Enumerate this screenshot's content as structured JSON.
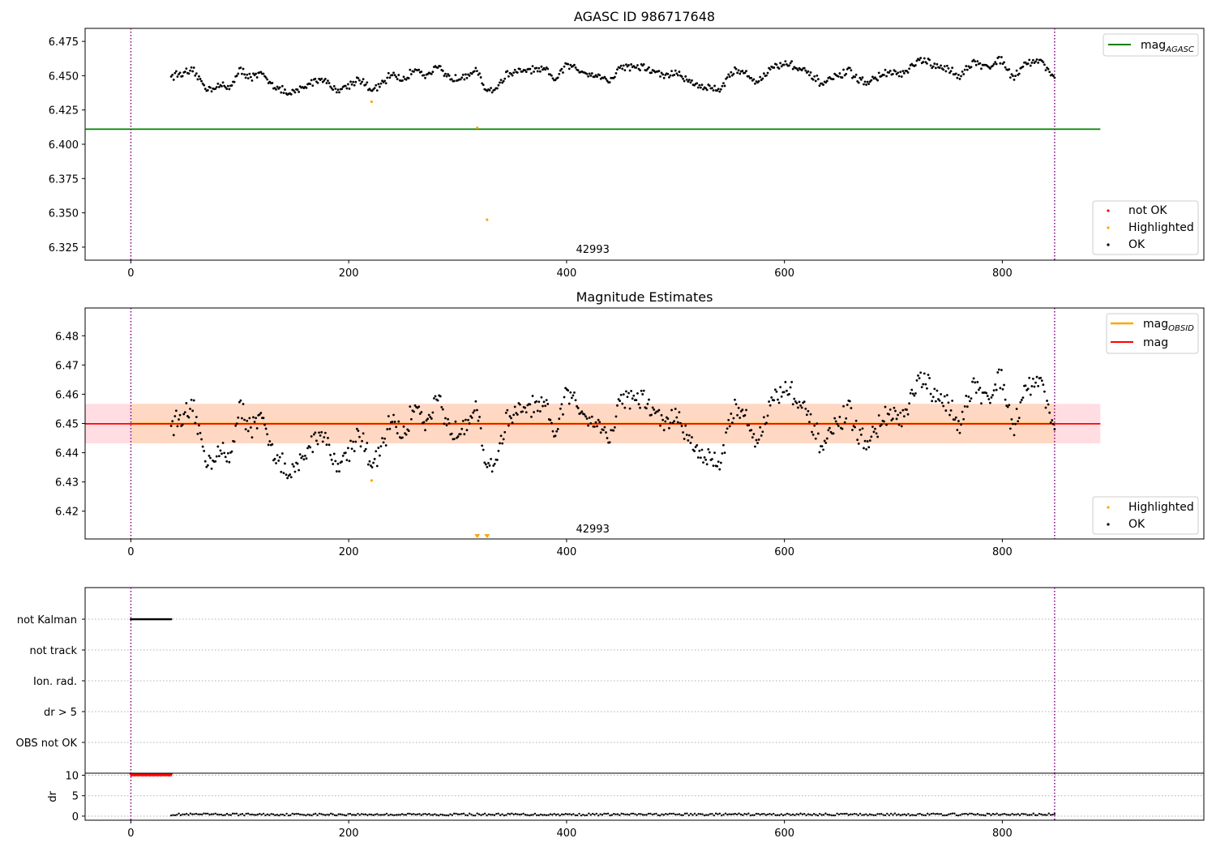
{
  "figure": {
    "title": "AGASC ID 986717648",
    "colors": {
      "agasc_line": "#008000",
      "mag_line": "#ff0000",
      "obsid_line": "#ffa500",
      "highlighted": "#ffa500",
      "not_ok": "#ff0000",
      "ok": "#000000",
      "boundary": "#800080",
      "band_pink": "#ffdde2",
      "band_orange": "#ffd8c4"
    }
  },
  "chart_data": [
    {
      "id": "agasc",
      "type": "scatter",
      "title": "AGASC ID 986717648",
      "xlim": [
        -42,
        985
      ],
      "ylim": [
        6.3155,
        6.4845
      ],
      "xticks": [
        0,
        200,
        400,
        600,
        800
      ],
      "yticks": [
        6.325,
        6.35,
        6.375,
        6.4,
        6.425,
        6.45,
        6.475
      ],
      "ytick_labels": [
        "6.325",
        "6.350",
        "6.375",
        "6.400",
        "6.425",
        "6.450",
        "6.475"
      ],
      "obsid_label": {
        "text": "42993",
        "x": 424
      },
      "vlines": [
        0,
        848
      ],
      "hlines": [
        {
          "name": "mag_AGASC",
          "y": 6.411,
          "x": [
            -42,
            890
          ]
        }
      ],
      "ok_series": {
        "x_start": 37,
        "x_end": 848,
        "n": 700,
        "dither": 0.002
      },
      "highlighted": [
        [
          221,
          6.431
        ],
        [
          318,
          6.412
        ],
        [
          327,
          6.345
        ]
      ],
      "legend_top": [
        {
          "label": "mag",
          "sub": "AGASC",
          "kind": "line",
          "color": "#008000"
        }
      ],
      "legend_bottom": [
        {
          "label": "not OK",
          "kind": "dot",
          "color": "#ff0000"
        },
        {
          "label": "Highlighted",
          "kind": "dot",
          "color": "#ffa500"
        },
        {
          "label": "OK",
          "kind": "dot",
          "color": "#000000"
        }
      ],
      "trend": [
        [
          37,
          6.45
        ],
        [
          50,
          6.452
        ],
        [
          58,
          6.453
        ],
        [
          70,
          6.44
        ],
        [
          80,
          6.443
        ],
        [
          90,
          6.441
        ],
        [
          100,
          6.454
        ],
        [
          110,
          6.449
        ],
        [
          120,
          6.451
        ],
        [
          130,
          6.444
        ],
        [
          145,
          6.436
        ],
        [
          160,
          6.442
        ],
        [
          170,
          6.447
        ],
        [
          180,
          6.447
        ],
        [
          185,
          6.44
        ],
        [
          195,
          6.441
        ],
        [
          210,
          6.448
        ],
        [
          220,
          6.439
        ],
        [
          230,
          6.443
        ],
        [
          240,
          6.452
        ],
        [
          250,
          6.446
        ],
        [
          262,
          6.456
        ],
        [
          270,
          6.45
        ],
        [
          282,
          6.456
        ],
        [
          290,
          6.449
        ],
        [
          300,
          6.448
        ],
        [
          310,
          6.452
        ],
        [
          318,
          6.453
        ],
        [
          325,
          6.44
        ],
        [
          335,
          6.44
        ],
        [
          345,
          6.451
        ],
        [
          365,
          6.454
        ],
        [
          380,
          6.454
        ],
        [
          390,
          6.447
        ],
        [
          400,
          6.458
        ],
        [
          415,
          6.453
        ],
        [
          430,
          6.45
        ],
        [
          440,
          6.446
        ],
        [
          450,
          6.457
        ],
        [
          470,
          6.456
        ],
        [
          490,
          6.45
        ],
        [
          500,
          6.452
        ],
        [
          510,
          6.447
        ],
        [
          525,
          6.442
        ],
        [
          540,
          6.44
        ],
        [
          555,
          6.455
        ],
        [
          565,
          6.451
        ],
        [
          575,
          6.445
        ],
        [
          590,
          6.457
        ],
        [
          605,
          6.459
        ],
        [
          620,
          6.452
        ],
        [
          635,
          6.444
        ],
        [
          650,
          6.45
        ],
        [
          660,
          6.453
        ],
        [
          670,
          6.446
        ],
        [
          680,
          6.446
        ],
        [
          690,
          6.451
        ],
        [
          700,
          6.452
        ],
        [
          710,
          6.451
        ],
        [
          725,
          6.462
        ],
        [
          740,
          6.456
        ],
        [
          750,
          6.455
        ],
        [
          760,
          6.45
        ],
        [
          775,
          6.46
        ],
        [
          785,
          6.456
        ],
        [
          800,
          6.462
        ],
        [
          810,
          6.448
        ],
        [
          820,
          6.459
        ],
        [
          835,
          6.461
        ],
        [
          848,
          6.449
        ]
      ]
    },
    {
      "id": "estimates",
      "type": "scatter",
      "title": "Magnitude Estimates",
      "xlim": [
        -42,
        985
      ],
      "ylim": [
        6.4105,
        6.4895
      ],
      "xticks": [
        0,
        200,
        400,
        600,
        800
      ],
      "yticks": [
        6.42,
        6.43,
        6.44,
        6.45,
        6.46,
        6.47,
        6.48
      ],
      "ytick_labels": [
        "6.42",
        "6.43",
        "6.44",
        "6.45",
        "6.46",
        "6.47",
        "6.48"
      ],
      "obsid_label": {
        "text": "42993",
        "x": 424
      },
      "vlines": [
        0,
        848
      ],
      "band": {
        "y": [
          6.4432,
          6.4567
        ],
        "x": [
          -42,
          890
        ]
      },
      "mag_line": {
        "y": 6.4499,
        "x": [
          -42,
          890
        ]
      },
      "obsid_line": {
        "y": 6.4499,
        "x": [
          0,
          848
        ]
      },
      "ok_series": {
        "x_start": 37,
        "x_end": 848,
        "n": 700,
        "dither": 0.004
      },
      "highlighted": [
        [
          221,
          6.4305
        ]
      ],
      "offscale_markers": [
        318,
        327
      ],
      "legend_top": [
        {
          "label": "mag",
          "sub": "OBSID",
          "kind": "line",
          "color": "#ffa500"
        },
        {
          "label": "mag",
          "kind": "line",
          "color": "#ff0000"
        }
      ],
      "legend_bottom": [
        {
          "label": "Highlighted",
          "kind": "dot",
          "color": "#ffa500"
        },
        {
          "label": "OK",
          "kind": "dot",
          "color": "#000000"
        }
      ]
    },
    {
      "id": "flags",
      "type": "scatter",
      "xlim": [
        -42,
        985
      ],
      "vlines": [
        0,
        848
      ],
      "categories": [
        "not Kalman",
        "not track",
        "Ion. rad.",
        "dr > 5",
        "OBS not OK"
      ],
      "flag_points": [
        {
          "category": "not Kalman",
          "x_start": 0,
          "x_end": 37,
          "n": 40
        }
      ]
    },
    {
      "id": "dr",
      "type": "scatter",
      "xlim": [
        -42,
        985
      ],
      "ylim": [
        -1,
        10.5
      ],
      "xticks": [
        0,
        200,
        400,
        600,
        800
      ],
      "yticks": [
        0,
        5,
        10
      ],
      "ylabel": "dr",
      "vlines": [
        0,
        848
      ],
      "above_threshold": {
        "x_start": 0,
        "x_end": 37,
        "n": 40,
        "y": 10
      },
      "series": {
        "x_start": 37,
        "x_end": 848,
        "n": 460,
        "y_mean": 0.3
      }
    }
  ]
}
